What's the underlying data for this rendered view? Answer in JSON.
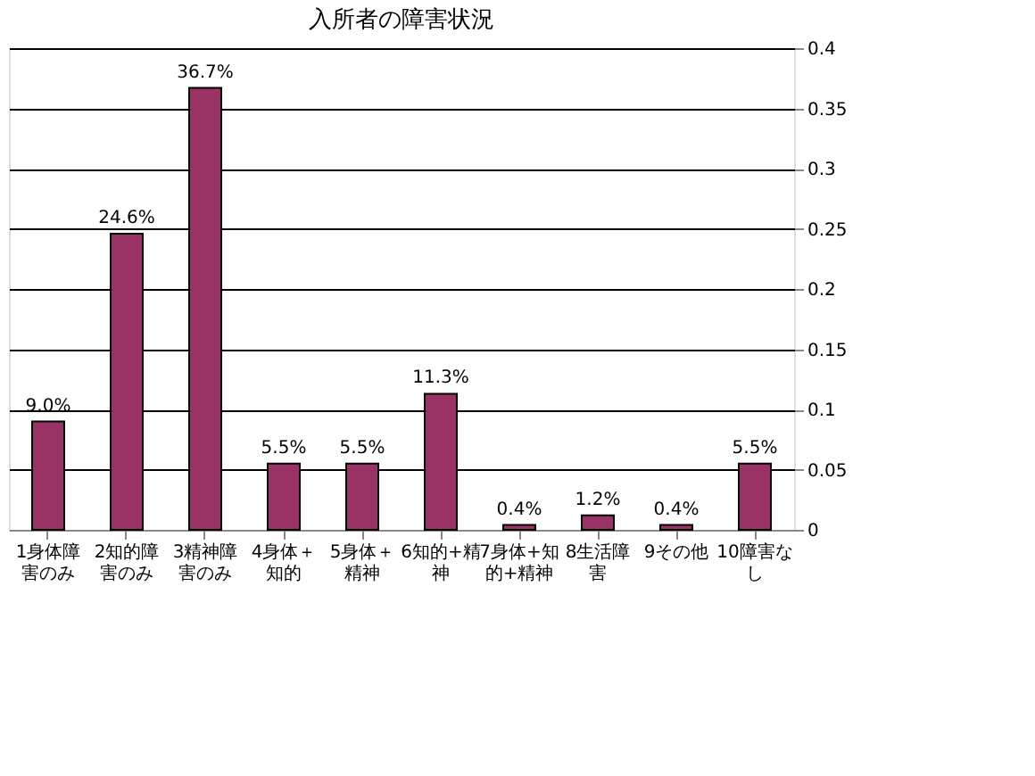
{
  "chart_data": {
    "type": "bar",
    "title": "入所者の障害状況",
    "categories": [
      "1身体障害のみ",
      "2知的障害のみ",
      "3精神障害のみ",
      "4身体＋知的",
      "5身体＋精神",
      "6知的+精神",
      "7身体+知的+精神",
      "8生活障害",
      "9その他",
      "10障害なし"
    ],
    "values": [
      0.09,
      0.246,
      0.367,
      0.055,
      0.055,
      0.113,
      0.004,
      0.012,
      0.004,
      0.055
    ],
    "value_labels": [
      "9.0%",
      "24.6%",
      "36.7%",
      "5.5%",
      "5.5%",
      "11.3%",
      "0.4%",
      "1.2%",
      "0.4%",
      "5.5%"
    ],
    "color": "#993366",
    "ylim": [
      0,
      0.4
    ],
    "yticks": [
      0,
      0.05,
      0.1,
      0.15,
      0.2,
      0.25,
      0.3,
      0.35,
      0.4
    ],
    "grid": "y"
  }
}
